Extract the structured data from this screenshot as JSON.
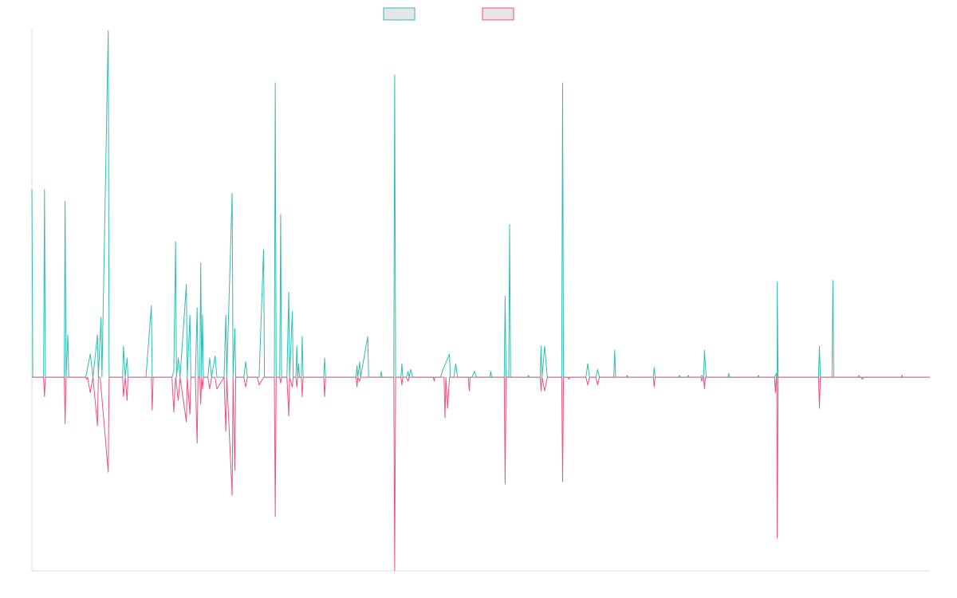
{
  "colors": {
    "positive_series": "#2ebfb0",
    "negative_series": "#f0507a",
    "legend_fill": "#e6e6e6",
    "axis": "#dcdcdc",
    "background": "#ffffff"
  },
  "legend": {
    "placement": "top-center",
    "entries": [
      {
        "name": "",
        "color": "#2ebfb0"
      },
      {
        "name": "",
        "color": "#f0507a"
      }
    ]
  },
  "chart_data": {
    "type": "line",
    "title": "",
    "xlabel": "",
    "ylabel": "",
    "grid": false,
    "xlim": [
      0,
      1000
    ],
    "ylim": [
      -100,
      180
    ],
    "series": [
      {
        "name": "",
        "color": "#2ebfb0",
        "points": [
          [
            0,
            97
          ],
          [
            1,
            0
          ],
          [
            13,
            0
          ],
          [
            14,
            97
          ],
          [
            15,
            0
          ],
          [
            36,
            0
          ],
          [
            37,
            91
          ],
          [
            38,
            0
          ],
          [
            40,
            22
          ],
          [
            41,
            0
          ],
          [
            60,
            0
          ],
          [
            65,
            12
          ],
          [
            68,
            0
          ],
          [
            73,
            22
          ],
          [
            74,
            0
          ],
          [
            77,
            31
          ],
          [
            78,
            0
          ],
          [
            85,
            179
          ],
          [
            86,
            0
          ],
          [
            101,
            0
          ],
          [
            102,
            16
          ],
          [
            104,
            0
          ],
          [
            106,
            10
          ],
          [
            107,
            0
          ],
          [
            125,
            0
          ],
          [
            127,
            0
          ],
          [
            133,
            37
          ],
          [
            134,
            0
          ],
          [
            156,
            0
          ],
          [
            158,
            3
          ],
          [
            160,
            70
          ],
          [
            161,
            0
          ],
          [
            163,
            10
          ],
          [
            165,
            0
          ],
          [
            172,
            48
          ],
          [
            173,
            0
          ],
          [
            176,
            32
          ],
          [
            177,
            0
          ],
          [
            182,
            0
          ],
          [
            184,
            36
          ],
          [
            185,
            0
          ],
          [
            187,
            0
          ],
          [
            188,
            59
          ],
          [
            189,
            0
          ],
          [
            190,
            32
          ],
          [
            191,
            0
          ],
          [
            196,
            0
          ],
          [
            198,
            10
          ],
          [
            200,
            0
          ],
          [
            204,
            11
          ],
          [
            206,
            0
          ],
          [
            214,
            0
          ],
          [
            216,
            32
          ],
          [
            217,
            0
          ],
          [
            223,
            95
          ],
          [
            224,
            0
          ],
          [
            226,
            25
          ],
          [
            227,
            0
          ],
          [
            236,
            0
          ],
          [
            238,
            8
          ],
          [
            240,
            0
          ],
          [
            251,
            0
          ],
          [
            253,
            0
          ],
          [
            258,
            66
          ],
          [
            259,
            0
          ],
          [
            270,
            0
          ],
          [
            271,
            152
          ],
          [
            272,
            0
          ],
          [
            276,
            0
          ],
          [
            277,
            84
          ],
          [
            278,
            0
          ],
          [
            284,
            0
          ],
          [
            286,
            44
          ],
          [
            287,
            0
          ],
          [
            290,
            34
          ],
          [
            291,
            0
          ],
          [
            294,
            0
          ],
          [
            295,
            16
          ],
          [
            296,
            0
          ],
          [
            297,
            7
          ],
          [
            298,
            0
          ],
          [
            300,
            0
          ],
          [
            301,
            21
          ],
          [
            302,
            0
          ],
          [
            325,
            0
          ],
          [
            326,
            10
          ],
          [
            327,
            0
          ],
          [
            361,
            0
          ],
          [
            362,
            6
          ],
          [
            363,
            0
          ],
          [
            365,
            8
          ],
          [
            366,
            0
          ],
          [
            374,
            21
          ],
          [
            375,
            0
          ],
          [
            388,
            0
          ],
          [
            389,
            3
          ],
          [
            390,
            0
          ],
          [
            403,
            0
          ],
          [
            404,
            156
          ],
          [
            405,
            0
          ],
          [
            411,
            0
          ],
          [
            412,
            7
          ],
          [
            413,
            0
          ],
          [
            417,
            0
          ],
          [
            419,
            3
          ],
          [
            420,
            0
          ],
          [
            422,
            4
          ],
          [
            424,
            0
          ],
          [
            455,
            0
          ],
          [
            457,
            3
          ],
          [
            465,
            12
          ],
          [
            466,
            0
          ],
          [
            470,
            0
          ],
          [
            472,
            7
          ],
          [
            474,
            0
          ],
          [
            490,
            0
          ],
          [
            493,
            3
          ],
          [
            495,
            0
          ],
          [
            510,
            0
          ],
          [
            511,
            3
          ],
          [
            512,
            0
          ],
          [
            526,
            0
          ],
          [
            527,
            42
          ],
          [
            528,
            0
          ],
          [
            531,
            0
          ],
          [
            532,
            79
          ],
          [
            533,
            0
          ],
          [
            552,
            0
          ],
          [
            553,
            1
          ],
          [
            554,
            0
          ],
          [
            566,
            0
          ],
          [
            567,
            16
          ],
          [
            568,
            0
          ],
          [
            571,
            16
          ],
          [
            574,
            0
          ],
          [
            590,
            0
          ],
          [
            591,
            152
          ],
          [
            592,
            0
          ],
          [
            617,
            0
          ],
          [
            619,
            7
          ],
          [
            621,
            0
          ],
          [
            628,
            0
          ],
          [
            630,
            4
          ],
          [
            632,
            0
          ],
          [
            648,
            0
          ],
          [
            649,
            14
          ],
          [
            650,
            0
          ],
          [
            662,
            0
          ],
          [
            663,
            1
          ],
          [
            664,
            0
          ],
          [
            675,
            0
          ],
          [
            692,
            0
          ],
          [
            693,
            5
          ],
          [
            694,
            0
          ],
          [
            720,
            0
          ],
          [
            721,
            1
          ],
          [
            722,
            0
          ],
          [
            730,
            0
          ],
          [
            731,
            1
          ],
          [
            732,
            0
          ],
          [
            745,
            0
          ],
          [
            746,
            1
          ],
          [
            747,
            0
          ],
          [
            748,
            0
          ],
          [
            749,
            14
          ],
          [
            750,
            6
          ],
          [
            751,
            0
          ],
          [
            775,
            0
          ],
          [
            776,
            2
          ],
          [
            777,
            0
          ],
          [
            808,
            0
          ],
          [
            809,
            1
          ],
          [
            810,
            0
          ],
          [
            827,
            0
          ],
          [
            829,
            2
          ],
          [
            830,
            0
          ],
          [
            829.5,
            0
          ],
          [
            830,
            49
          ],
          [
            831,
            0
          ],
          [
            876,
            0
          ],
          [
            877,
            16
          ],
          [
            878,
            0
          ],
          [
            891,
            0
          ],
          [
            892,
            50
          ],
          [
            893,
            0
          ],
          [
            920,
            0
          ],
          [
            921,
            1
          ],
          [
            922,
            0
          ],
          [
            968,
            0
          ],
          [
            969,
            1
          ],
          [
            970,
            0
          ],
          [
            1000,
            0
          ]
        ]
      },
      {
        "name": "",
        "color": "#f0507a",
        "points": [
          [
            0,
            0
          ],
          [
            13,
            0
          ],
          [
            14,
            -10
          ],
          [
            15,
            0
          ],
          [
            36,
            0
          ],
          [
            37,
            -24
          ],
          [
            38,
            0
          ],
          [
            40,
            0
          ],
          [
            60,
            0
          ],
          [
            61,
            -1
          ],
          [
            62,
            0
          ],
          [
            65,
            -8
          ],
          [
            68,
            0
          ],
          [
            73,
            -25
          ],
          [
            74,
            0
          ],
          [
            76,
            0
          ],
          [
            85,
            -49
          ],
          [
            86,
            0
          ],
          [
            101,
            0
          ],
          [
            102,
            -10
          ],
          [
            104,
            0
          ],
          [
            106,
            -12
          ],
          [
            107,
            0
          ],
          [
            133,
            0
          ],
          [
            134,
            -17
          ],
          [
            135,
            0
          ],
          [
            156,
            0
          ],
          [
            158,
            -18
          ],
          [
            160,
            0
          ],
          [
            163,
            -12
          ],
          [
            165,
            0
          ],
          [
            172,
            -23
          ],
          [
            173,
            0
          ],
          [
            176,
            -19
          ],
          [
            177,
            0
          ],
          [
            182,
            0
          ],
          [
            184,
            -34
          ],
          [
            185,
            0
          ],
          [
            187,
            0
          ],
          [
            188,
            -14
          ],
          [
            189,
            0
          ],
          [
            190,
            -6
          ],
          [
            191,
            0
          ],
          [
            196,
            0
          ],
          [
            198,
            -6
          ],
          [
            200,
            0
          ],
          [
            204,
            0
          ],
          [
            206,
            -6
          ],
          [
            214,
            0
          ],
          [
            216,
            -28
          ],
          [
            217,
            0
          ],
          [
            223,
            -61
          ],
          [
            224,
            0
          ],
          [
            226,
            -48
          ],
          [
            227,
            0
          ],
          [
            236,
            0
          ],
          [
            238,
            -5
          ],
          [
            240,
            0
          ],
          [
            251,
            0
          ],
          [
            253,
            -4
          ],
          [
            258,
            0
          ],
          [
            259,
            0
          ],
          [
            270,
            0
          ],
          [
            271,
            -72
          ],
          [
            272,
            0
          ],
          [
            276,
            0
          ],
          [
            277,
            -3
          ],
          [
            278,
            0
          ],
          [
            284,
            0
          ],
          [
            286,
            -20
          ],
          [
            287,
            0
          ],
          [
            290,
            -5
          ],
          [
            291,
            0
          ],
          [
            294,
            0
          ],
          [
            295,
            -5
          ],
          [
            296,
            0
          ],
          [
            300,
            0
          ],
          [
            301,
            -10
          ],
          [
            302,
            0
          ],
          [
            325,
            0
          ],
          [
            326,
            -10
          ],
          [
            327,
            0
          ],
          [
            361,
            0
          ],
          [
            362,
            -5
          ],
          [
            363,
            0
          ],
          [
            365,
            -2
          ],
          [
            366,
            0
          ],
          [
            403,
            0
          ],
          [
            404,
            -100
          ],
          [
            405,
            0
          ],
          [
            411,
            0
          ],
          [
            412,
            -4
          ],
          [
            413,
            0
          ],
          [
            417,
            0
          ],
          [
            419,
            -2
          ],
          [
            420,
            0
          ],
          [
            447,
            0
          ],
          [
            448,
            -2
          ],
          [
            449,
            0
          ],
          [
            459,
            0
          ],
          [
            460,
            -21
          ],
          [
            461,
            0
          ],
          [
            463,
            -16
          ],
          [
            465,
            0
          ],
          [
            486,
            0
          ],
          [
            487,
            -7
          ],
          [
            488,
            0
          ],
          [
            526,
            0
          ],
          [
            527,
            -55
          ],
          [
            528,
            0
          ],
          [
            566,
            0
          ],
          [
            567,
            -7
          ],
          [
            568,
            0
          ],
          [
            571,
            -7
          ],
          [
            574,
            0
          ],
          [
            590,
            0
          ],
          [
            591,
            -54
          ],
          [
            592,
            0
          ],
          [
            597,
            0
          ],
          [
            598,
            -1
          ],
          [
            599,
            0
          ],
          [
            617,
            0
          ],
          [
            619,
            -4
          ],
          [
            621,
            0
          ],
          [
            628,
            0
          ],
          [
            630,
            -4
          ],
          [
            632,
            0
          ],
          [
            692,
            0
          ],
          [
            693,
            -5
          ],
          [
            694,
            0
          ],
          [
            745,
            0
          ],
          [
            746,
            -2
          ],
          [
            747,
            0
          ],
          [
            748,
            0
          ],
          [
            749,
            -6
          ],
          [
            750,
            0
          ],
          [
            827,
            0
          ],
          [
            828,
            -8
          ],
          [
            829,
            0
          ],
          [
            829.5,
            0
          ],
          [
            830,
            -83
          ],
          [
            831,
            0
          ],
          [
            876,
            0
          ],
          [
            877,
            -16
          ],
          [
            878,
            0
          ],
          [
            923,
            0
          ],
          [
            925,
            -1
          ],
          [
            926,
            0
          ],
          [
            1000,
            0
          ]
        ]
      }
    ]
  }
}
